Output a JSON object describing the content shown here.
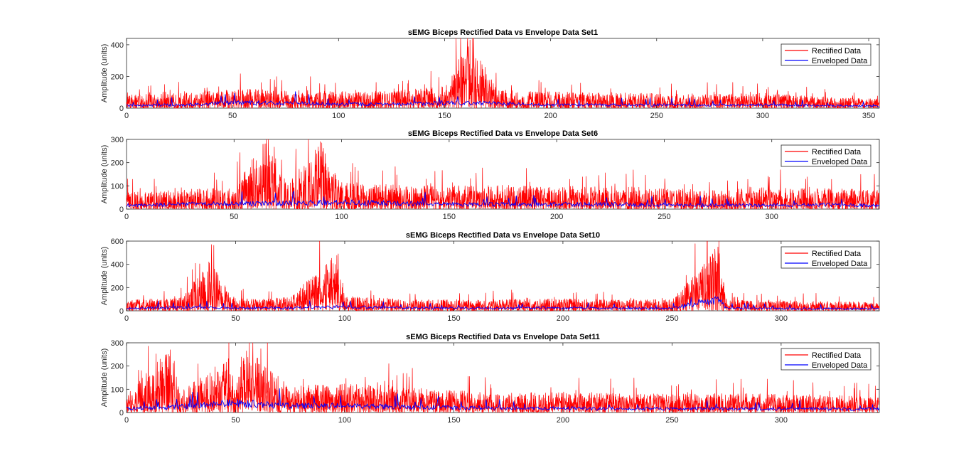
{
  "chart_data": [
    {
      "type": "line",
      "title": "sEMG Biceps Rectified Data vs Envelope Data Set1",
      "ylabel": "Amplitude (units)",
      "xlabel": "",
      "xlim": [
        0,
        355
      ],
      "ylim": [
        0,
        440
      ],
      "xticks": [
        0,
        50,
        100,
        150,
        200,
        250,
        300,
        350
      ],
      "yticks": [
        0,
        200,
        400
      ],
      "grid": false,
      "legend": "top-right",
      "series": [
        {
          "name": "Rectified Data",
          "color": "#ff0000",
          "x": [
            0,
            25,
            50,
            75,
            100,
            125,
            150,
            162,
            175,
            200,
            225,
            250,
            275,
            300,
            325,
            355
          ],
          "values": [
            80,
            90,
            120,
            110,
            100,
            105,
            130,
            430,
            110,
            100,
            95,
            90,
            85,
            90,
            70,
            55
          ]
        },
        {
          "name": "Enveloped Data",
          "color": "#0000ff",
          "x": [
            0,
            25,
            50,
            75,
            100,
            125,
            150,
            175,
            200,
            225,
            250,
            275,
            300,
            325,
            355
          ],
          "values": [
            20,
            25,
            40,
            40,
            30,
            30,
            40,
            35,
            25,
            25,
            25,
            22,
            25,
            20,
            15
          ]
        }
      ]
    },
    {
      "type": "line",
      "title": "sEMG Biceps Rectified Data vs Envelope Data Set6",
      "ylabel": "Amplitude (units)",
      "xlabel": "",
      "xlim": [
        0,
        350
      ],
      "ylim": [
        0,
        300
      ],
      "xticks": [
        0,
        50,
        100,
        150,
        200,
        250,
        300
      ],
      "yticks": [
        0,
        100,
        200,
        300
      ],
      "grid": false,
      "legend": "top-right",
      "series": [
        {
          "name": "Rectified Data",
          "color": "#ff0000",
          "x": [
            0,
            25,
            50,
            65,
            75,
            90,
            100,
            125,
            150,
            175,
            200,
            225,
            250,
            275,
            300,
            325,
            350
          ],
          "values": [
            70,
            80,
            90,
            300,
            100,
            290,
            110,
            100,
            95,
            100,
            90,
            95,
            85,
            80,
            90,
            85,
            80
          ]
        },
        {
          "name": "Enveloped Data",
          "color": "#0000ff",
          "x": [
            0,
            25,
            50,
            75,
            100,
            125,
            150,
            175,
            200,
            225,
            250,
            275,
            300,
            325,
            350
          ],
          "values": [
            20,
            25,
            30,
            30,
            35,
            30,
            25,
            25,
            25,
            25,
            22,
            20,
            22,
            22,
            20
          ]
        }
      ]
    },
    {
      "type": "line",
      "title": "sEMG Biceps Rectified Data vs Envelope Data Set10",
      "ylabel": "Amplitude (units)",
      "xlabel": "",
      "xlim": [
        0,
        345
      ],
      "ylim": [
        0,
        600
      ],
      "xticks": [
        0,
        50,
        100,
        150,
        200,
        250,
        300
      ],
      "yticks": [
        0,
        200,
        400,
        600
      ],
      "grid": false,
      "legend": "top-right",
      "series": [
        {
          "name": "Rectified Data",
          "color": "#ff0000",
          "x": [
            0,
            25,
            38,
            50,
            75,
            97,
            100,
            125,
            150,
            175,
            200,
            225,
            250,
            271,
            275,
            300,
            325,
            345
          ],
          "values": [
            90,
            110,
            410,
            100,
            110,
            490,
            120,
            100,
            90,
            95,
            100,
            90,
            95,
            550,
            90,
            85,
            80,
            70
          ]
        },
        {
          "name": "Enveloped Data",
          "color": "#0000ff",
          "x": [
            0,
            25,
            50,
            75,
            100,
            125,
            150,
            175,
            200,
            225,
            250,
            271,
            275,
            300,
            325,
            345
          ],
          "values": [
            25,
            35,
            30,
            30,
            40,
            30,
            28,
            28,
            30,
            26,
            25,
            120,
            25,
            25,
            22,
            20
          ]
        }
      ]
    },
    {
      "type": "line",
      "title": "sEMG Biceps Rectified Data vs Envelope Data Set11",
      "ylabel": "Amplitude (units)",
      "xlabel": "",
      "xlim": [
        0,
        345
      ],
      "ylim": [
        0,
        300
      ],
      "xticks": [
        0,
        50,
        100,
        150,
        200,
        250,
        300
      ],
      "yticks": [
        0,
        100,
        200,
        300
      ],
      "grid": false,
      "legend": "top-right",
      "series": [
        {
          "name": "Rectified Data",
          "color": "#ff0000",
          "x": [
            0,
            20,
            25,
            47,
            50,
            55,
            75,
            100,
            125,
            150,
            175,
            200,
            225,
            250,
            275,
            300,
            325,
            345
          ],
          "values": [
            70,
            270,
            90,
            230,
            120,
            265,
            110,
            120,
            110,
            90,
            80,
            85,
            80,
            75,
            80,
            75,
            70,
            65
          ]
        },
        {
          "name": "Enveloped Data",
          "color": "#0000ff",
          "x": [
            0,
            25,
            50,
            75,
            100,
            125,
            150,
            175,
            200,
            225,
            250,
            275,
            300,
            325,
            345
          ],
          "values": [
            20,
            30,
            50,
            35,
            35,
            30,
            25,
            22,
            22,
            20,
            20,
            20,
            20,
            18,
            18
          ]
        }
      ]
    }
  ]
}
